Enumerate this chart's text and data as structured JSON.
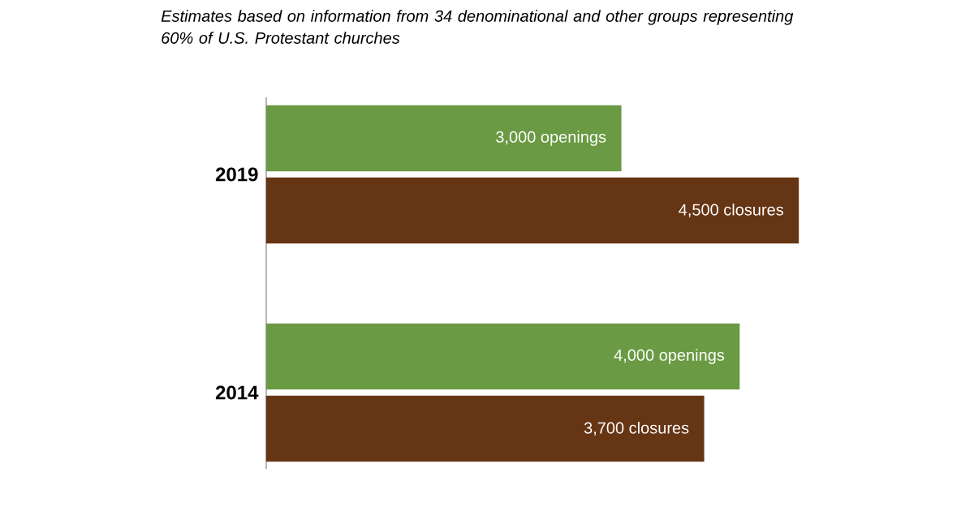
{
  "chart_data": {
    "type": "bar",
    "orientation": "horizontal",
    "title": "Estimates based on information from 34 denominational and other groups representing 60% of U.S. Protestant churches",
    "categories": [
      "2019",
      "2014"
    ],
    "series": [
      {
        "color": "#6a9a43",
        "values": [
          3000,
          4000
        ],
        "value_labels": [
          "3,000 openings",
          "4,000 openings"
        ]
      },
      {
        "color": "#663514",
        "values": [
          4500,
          3700
        ],
        "value_labels": [
          "4,500 closures",
          "3,700 closures"
        ]
      }
    ]
  }
}
